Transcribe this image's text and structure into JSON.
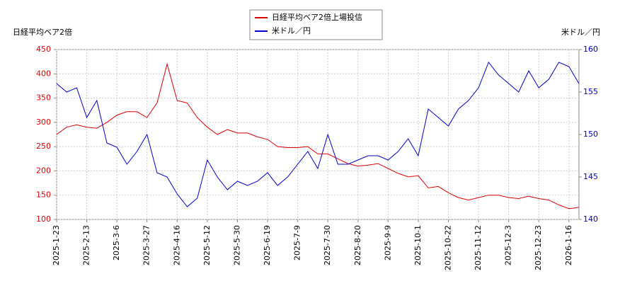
{
  "chart_data": {
    "type": "line",
    "y_label": "日経平均ベア2倍",
    "y2_label": "米ドル／円",
    "categories": [
      "2025-1-23",
      null,
      null,
      "2025-2-13",
      null,
      null,
      "2025-3-6",
      null,
      null,
      "2025-3-27",
      null,
      null,
      "2025-4-16",
      null,
      null,
      "2025-5-12",
      null,
      null,
      "2025-5-30",
      null,
      null,
      "2025-6-19",
      null,
      null,
      "2025-7-9",
      null,
      null,
      "2025-7-30",
      null,
      null,
      "2025-8-20",
      null,
      null,
      "2025-9-9",
      null,
      null,
      "2025-10-1",
      null,
      null,
      "2025-10-22",
      null,
      null,
      "2025-11-12",
      null,
      null,
      "2025-12-3",
      null,
      null,
      "2025-12-23",
      null,
      null,
      "2026-1-16",
      null
    ],
    "series": [
      {
        "name": "日経平均ベア2倍上場投信",
        "color": "#dd0000",
        "axis": "y",
        "values": [
          275,
          290,
          295,
          290,
          288,
          300,
          315,
          322,
          322,
          310,
          340,
          420,
          345,
          340,
          310,
          290,
          275,
          285,
          278,
          278,
          270,
          265,
          250,
          248,
          248,
          250,
          235,
          235,
          225,
          215,
          210,
          212,
          215,
          205,
          195,
          188,
          190,
          165,
          168,
          155,
          145,
          140,
          145,
          150,
          150,
          145,
          143,
          148,
          143,
          140,
          130,
          122,
          125
        ]
      },
      {
        "name": "米ドル／円",
        "color": "#0000cc",
        "axis": "y2",
        "values": [
          156,
          155,
          155.5,
          152,
          154,
          149,
          148.5,
          146.5,
          148,
          150,
          145.5,
          145,
          143,
          141.5,
          142.5,
          147,
          145,
          143.5,
          144.5,
          144,
          144.5,
          145.5,
          144,
          145,
          146.5,
          148,
          146,
          150,
          146.5,
          146.5,
          147,
          147.5,
          147.5,
          147,
          148,
          149.5,
          147.5,
          153,
          152,
          151,
          153,
          154,
          155.5,
          158.5,
          157,
          156,
          155,
          157.5,
          155.5,
          156.5,
          158.5,
          158,
          156
        ]
      }
    ],
    "ylim": [
      100,
      450
    ],
    "yticks": [
      100,
      150,
      200,
      250,
      300,
      350,
      400,
      450
    ],
    "y2lim": [
      140,
      160
    ],
    "y2ticks": [
      140,
      145,
      150,
      155,
      160
    ],
    "grid": true
  }
}
